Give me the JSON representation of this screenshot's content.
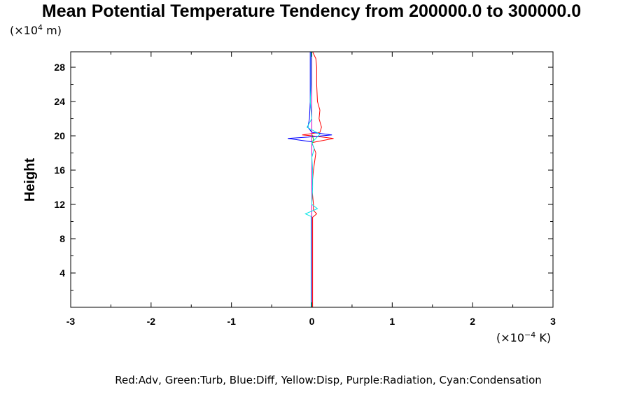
{
  "chart_data": {
    "type": "line",
    "title": "Mean Potential Temperature Tendency from 200000.0 to 300000.0",
    "ylabel": "Height",
    "yunit_prefix": "(×10",
    "yunit_exp": "4",
    "yunit_suffix": " m)",
    "xunit_prefix": "(×10",
    "xunit_exp": "−4",
    "xunit_suffix": " K)",
    "xlim": [
      -3,
      3
    ],
    "ylim": [
      0,
      29.8
    ],
    "xticks": [
      -3,
      -2,
      -1,
      0,
      1,
      2,
      3
    ],
    "xtick_labels": [
      "-3",
      "-2",
      "-1",
      "0",
      "1",
      "2",
      "3"
    ],
    "yticks": [
      4,
      8,
      12,
      16,
      20,
      24,
      28
    ],
    "ytick_labels": [
      "4",
      "8",
      "12",
      "16",
      "20",
      "24",
      "28"
    ],
    "grid": false,
    "legend_text": "Red:Adv, Green:Turb, Blue:Diff, Yellow:Disp, Purple:Radiation, Cyan:Condensation",
    "series": [
      {
        "name": "Adv",
        "color": "#ff0000",
        "points": [
          [
            0.01,
            0
          ],
          [
            0.01,
            4
          ],
          [
            0.01,
            8
          ],
          [
            0.01,
            10.5
          ],
          [
            0.06,
            10.9
          ],
          [
            0.02,
            11.3
          ],
          [
            0.02,
            12
          ],
          [
            0.0,
            14
          ],
          [
            0.02,
            16
          ],
          [
            0.05,
            18
          ],
          [
            0.0,
            19.2
          ],
          [
            0.27,
            19.7
          ],
          [
            0.0,
            20.0
          ],
          [
            -0.12,
            20.1
          ],
          [
            0.1,
            20.4
          ],
          [
            0.12,
            21
          ],
          [
            0.09,
            22
          ],
          [
            0.1,
            23
          ],
          [
            0.07,
            24
          ],
          [
            0.06,
            26
          ],
          [
            0.06,
            28
          ],
          [
            0.05,
            29
          ],
          [
            0.01,
            29.8
          ]
        ]
      },
      {
        "name": "Turb",
        "color": "#00cc00",
        "points": [
          [
            0.0,
            0
          ],
          [
            0.0,
            4
          ],
          [
            0.0,
            8
          ],
          [
            0.0,
            12
          ],
          [
            0.0,
            16
          ],
          [
            0.0,
            19
          ],
          [
            0.02,
            19.6
          ],
          [
            0.0,
            20.2
          ],
          [
            0.0,
            24
          ],
          [
            0.0,
            29.8
          ]
        ]
      },
      {
        "name": "Diff",
        "color": "#0000ff",
        "points": [
          [
            0.0,
            0
          ],
          [
            0.0,
            4
          ],
          [
            0.0,
            10
          ],
          [
            0.0,
            16
          ],
          [
            0.0,
            19.3
          ],
          [
            -0.3,
            19.7
          ],
          [
            -0.05,
            19.85
          ],
          [
            0.25,
            20.1
          ],
          [
            0.0,
            20.4
          ],
          [
            -0.05,
            21
          ],
          [
            -0.03,
            22
          ],
          [
            -0.02,
            24
          ],
          [
            -0.02,
            26
          ],
          [
            -0.02,
            28
          ],
          [
            -0.02,
            29.8
          ]
        ]
      },
      {
        "name": "Disp",
        "color": "#dddd00",
        "points": [
          [
            0.0,
            0
          ],
          [
            0.0,
            4
          ],
          [
            0.0,
            12
          ],
          [
            0.0,
            16
          ],
          [
            0.0,
            20
          ],
          [
            0.0,
            24
          ],
          [
            0.0,
            29.8
          ]
        ]
      },
      {
        "name": "Radiation",
        "color": "#cc00cc",
        "points": [
          [
            0.0,
            0
          ],
          [
            0.0,
            4
          ],
          [
            0.0,
            12
          ],
          [
            0.0,
            16
          ],
          [
            0.0,
            20
          ],
          [
            0.0,
            24
          ],
          [
            0.0,
            29.8
          ]
        ]
      },
      {
        "name": "Condensation",
        "color": "#00e5e5",
        "points": [
          [
            -0.01,
            0
          ],
          [
            -0.01,
            4
          ],
          [
            -0.01,
            8
          ],
          [
            -0.01,
            10.6
          ],
          [
            -0.08,
            10.9
          ],
          [
            0.07,
            11.5
          ],
          [
            0.0,
            12
          ],
          [
            0.01,
            14
          ],
          [
            0.01,
            16
          ],
          [
            0.0,
            17.5
          ],
          [
            0.03,
            18.5
          ],
          [
            0.0,
            19.2
          ],
          [
            0.1,
            20.2
          ],
          [
            -0.06,
            21
          ],
          [
            0.0,
            22
          ],
          [
            -0.02,
            24
          ],
          [
            -0.01,
            26
          ],
          [
            -0.01,
            28
          ],
          [
            -0.01,
            29.8
          ]
        ]
      }
    ]
  }
}
